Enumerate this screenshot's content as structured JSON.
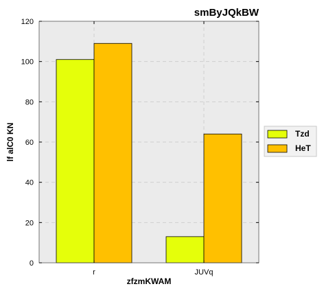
{
  "chart_data": {
    "type": "bar",
    "title": "smByJQkBW",
    "xlabel": "zfzmKWAM",
    "ylabel": "lf alC0 KN",
    "categories": [
      "r",
      "JUVq"
    ],
    "series": [
      {
        "name": "Tzd",
        "color": "#e5ff0a",
        "values": [
          101,
          13
        ]
      },
      {
        "name": "HeT",
        "color": "#ffc000",
        "values": [
          109,
          64
        ]
      }
    ],
    "ylim": [
      0,
      120
    ],
    "yticks": [
      0,
      20,
      40,
      60,
      80,
      100,
      120
    ],
    "grid": true,
    "legend_position": "right"
  }
}
